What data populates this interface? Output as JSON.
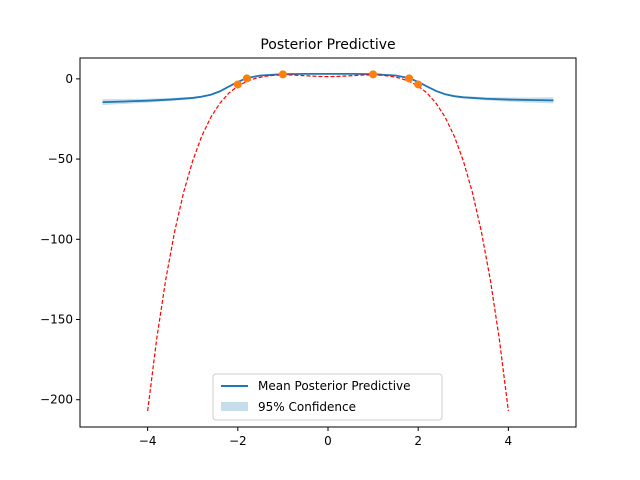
{
  "chart_data": {
    "type": "line",
    "title": "Posterior Predictive",
    "xlabel": "",
    "ylabel": "",
    "xlim": [
      -5.5,
      5.5
    ],
    "ylim": [
      -217,
      13
    ],
    "xticks": [
      -4,
      -2,
      0,
      2,
      4
    ],
    "xtick_labels": [
      "−4",
      "−2",
      "0",
      "2",
      "4"
    ],
    "yticks": [
      0,
      -50,
      -100,
      -150,
      -200
    ],
    "ytick_labels": [
      "0",
      "−50",
      "−100",
      "−150",
      "−200"
    ],
    "grid": false,
    "legend": {
      "placement": "lower center",
      "entries": [
        {
          "label": "Mean Posterior Predictive",
          "kind": "line",
          "color": "#1f77b4"
        },
        {
          "label": "95% Confidence",
          "kind": "band",
          "color": "#1f77b4"
        }
      ]
    },
    "series": [
      {
        "name": "Mean Posterior Predictive",
        "kind": "line",
        "color": "#1f77b4",
        "x": [
          -5,
          -4.5,
          -4,
          -3.5,
          -3,
          -2.8,
          -2.6,
          -2.4,
          -2.2,
          -2,
          -1.8,
          -1.5,
          -1,
          -0.5,
          0,
          0.5,
          1,
          1.5,
          1.8,
          2,
          2.2,
          2.4,
          2.6,
          2.8,
          3,
          3.5,
          4,
          4.5,
          5
        ],
        "y": [
          -14.5,
          -14.1,
          -13.6,
          -12.9,
          -11.9,
          -11.1,
          -9.9,
          -7.8,
          -4.8,
          -1.9,
          0.5,
          2.1,
          2.9,
          3.1,
          3.1,
          3.1,
          2.9,
          2.1,
          0.5,
          -1.9,
          -4.8,
          -7.6,
          -9.6,
          -10.8,
          -11.5,
          -12.4,
          -12.9,
          -13.2,
          -13.4
        ]
      },
      {
        "name": "95% Confidence",
        "kind": "band",
        "color": "#1f77b4",
        "opacity": 0.25,
        "x": [
          -5,
          -4.5,
          -4,
          -3.5,
          -3,
          -2.8,
          -2.6,
          -2.4,
          -2.2,
          -2,
          -1.8,
          -1.5,
          -1,
          -0.5,
          0,
          0.5,
          1,
          1.5,
          1.8,
          2,
          2.2,
          2.4,
          2.6,
          2.8,
          3,
          3.5,
          4,
          4.5,
          5
        ],
        "lower": [
          -16.4,
          -15.6,
          -14.8,
          -13.9,
          -12.6,
          -11.7,
          -10.4,
          -8.3,
          -5.2,
          -2.2,
          0.3,
          1.9,
          2.7,
          2.9,
          2.9,
          2.9,
          2.7,
          1.9,
          0.3,
          -2.2,
          -5.2,
          -8.1,
          -10.1,
          -11.4,
          -12.2,
          -13.4,
          -14.2,
          -14.8,
          -15.3
        ],
        "upper": [
          -12.6,
          -12.6,
          -12.4,
          -11.9,
          -11.2,
          -10.5,
          -9.4,
          -7.3,
          -4.4,
          -1.6,
          0.7,
          2.3,
          3.1,
          3.3,
          3.3,
          3.3,
          3.1,
          2.3,
          0.7,
          -1.6,
          -4.4,
          -7.1,
          -9.1,
          -10.2,
          -10.8,
          -11.4,
          -11.6,
          -11.6,
          -11.5
        ]
      },
      {
        "kind": "dashed_line",
        "color": "#ff0000",
        "x": [
          -4,
          -3.8,
          -3.6,
          -3.4,
          -3.2,
          -3,
          -2.8,
          -2.6,
          -2.4,
          -2.2,
          -2,
          -1.8,
          -1.6,
          -1.4,
          -1.2,
          -1,
          -0.8,
          -0.6,
          -0.4,
          -0.2,
          0,
          0.2,
          0.4,
          0.6,
          0.8,
          1,
          1.2,
          1.4,
          1.6,
          1.8,
          2,
          2.2,
          2.4,
          2.6,
          2.8,
          3,
          3.2,
          3.4,
          3.6,
          3.8,
          4
        ],
        "y": [
          -207,
          -162.3,
          -125.3,
          -95,
          -70.5,
          -51,
          -35.7,
          -24,
          -15.3,
          -8.9,
          -4.5,
          -1.5,
          0.4,
          1.6,
          2.2,
          2.5,
          2.4,
          2.1,
          1.8,
          1.5,
          1.4,
          1.5,
          1.8,
          2.1,
          2.4,
          2.5,
          2.2,
          1.6,
          0.4,
          -1.5,
          -4.5,
          -8.9,
          -15.3,
          -24,
          -35.7,
          -51,
          -70.5,
          -95,
          -125.3,
          -162.3,
          -207
        ]
      },
      {
        "kind": "scatter",
        "color": "#ff7f0e",
        "x": [
          -2,
          -1.8,
          -1,
          1,
          1.8,
          2
        ],
        "y": [
          -3.5,
          0.3,
          2.8,
          2.8,
          0.3,
          -3.5
        ]
      }
    ]
  }
}
